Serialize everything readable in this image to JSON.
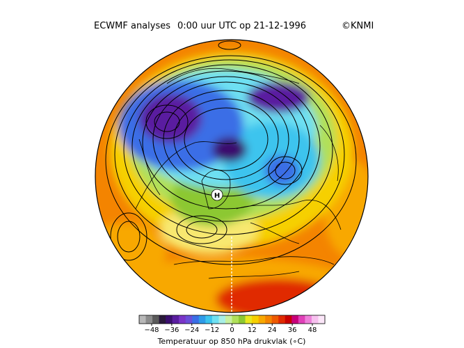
{
  "header": {
    "source": "ECWMF analyses",
    "datetime": "0:00 uur UTC op 21-12-1996",
    "credit": "©KNMI"
  },
  "map": {
    "projection": "orthographic-north-pole",
    "field": "temperature_850hPa",
    "contours": "geopotential",
    "pressure_marker": "H"
  },
  "colorbar": {
    "title": "Temperatuur op 850 hPa drukvlak (∘C)",
    "ticks": [
      "−48",
      "−36",
      "−24",
      "−12",
      "0",
      "12",
      "24",
      "36",
      "48"
    ],
    "colors": [
      "#b8b8b8",
      "#8c8c8c",
      "#5a5a5a",
      "#2a1a3a",
      "#3b0f6e",
      "#5a1ea0",
      "#7a35c8",
      "#6a4fd8",
      "#3a6ee6",
      "#2e9be8",
      "#3cc4ee",
      "#6ee0f2",
      "#a8efe6",
      "#c8f0a0",
      "#b0e05a",
      "#8cc832",
      "#e8e820",
      "#f6d000",
      "#f8a800",
      "#f48400",
      "#ee5a00",
      "#e02a00",
      "#c80000",
      "#c8007a",
      "#e040b8",
      "#ee80da",
      "#f6c0ee",
      "#fbe6f8"
    ]
  },
  "colors": {
    "polar_purple": "#5a1ea0",
    "cold_blue": "#3a6ee6",
    "cyan": "#3cc4ee",
    "green": "#8cc832",
    "yellow": "#f6d000",
    "orange": "#f48400",
    "red": "#e02a00"
  }
}
